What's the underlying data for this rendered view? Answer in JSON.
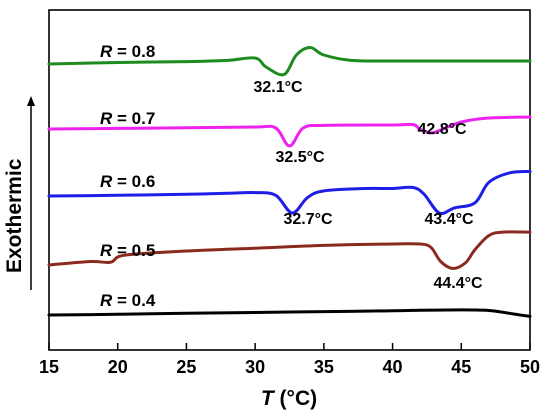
{
  "chart_data": {
    "type": "line",
    "title": "",
    "xlabel_italic": "T",
    "xlabel_rest": " (°C)",
    "ylabel": "Exothermic",
    "xlim": [
      15,
      50
    ],
    "xticks": [
      "15",
      "20",
      "25",
      "30",
      "35",
      "40",
      "45",
      "50"
    ],
    "grid": false,
    "legend": "none",
    "series": [
      {
        "name": "R = 0.4",
        "label_var": "R",
        "label_val": " = 0.4",
        "color": "#000000",
        "peaks": [],
        "points": [
          [
            15,
            0
          ],
          [
            20,
            0.025
          ],
          [
            25,
            0.06
          ],
          [
            30,
            0.09
          ],
          [
            35,
            0.12
          ],
          [
            40,
            0.15
          ],
          [
            42,
            0.17
          ],
          [
            44,
            0.18
          ],
          [
            46,
            0.18
          ],
          [
            47,
            0.16
          ],
          [
            48,
            0.1
          ],
          [
            49,
            0.02
          ],
          [
            50,
            -0.05
          ]
        ]
      },
      {
        "name": "R = 0.5",
        "label_var": "R",
        "label_val": " = 0.5",
        "color": "#8B2A1F",
        "peaks": [
          "44.4°C"
        ],
        "points": [
          [
            15,
            0
          ],
          [
            18,
            0.05
          ],
          [
            19.5,
            0.04
          ],
          [
            20.5,
            0.14
          ],
          [
            25,
            0.2
          ],
          [
            30,
            0.24
          ],
          [
            35,
            0.28
          ],
          [
            40,
            0.3
          ],
          [
            42,
            0.3
          ],
          [
            42.8,
            0.25
          ],
          [
            43.5,
            0.05
          ],
          [
            44.4,
            -0.05
          ],
          [
            45.3,
            0.03
          ],
          [
            46,
            0.22
          ],
          [
            47,
            0.42
          ],
          [
            48,
            0.47
          ],
          [
            50,
            0.47
          ]
        ]
      },
      {
        "name": "R = 0.6",
        "label_var": "R",
        "label_val": " = 0.6",
        "color": "#1E1EE6",
        "peaks": [
          "32.7°C",
          "43.4°C"
        ],
        "points": [
          [
            15,
            0
          ],
          [
            20,
            0.02
          ],
          [
            25,
            0.05
          ],
          [
            28,
            0.08
          ],
          [
            30,
            0.1
          ],
          [
            31.5,
            0.02
          ],
          [
            32.7,
            -0.5
          ],
          [
            33.8,
            -0.05
          ],
          [
            35,
            0.15
          ],
          [
            38,
            0.22
          ],
          [
            40,
            0.22
          ],
          [
            41.5,
            0.25
          ],
          [
            42.3,
            0.05
          ],
          [
            43.4,
            -0.5
          ],
          [
            44.5,
            -0.35
          ],
          [
            46,
            -0.2
          ],
          [
            47,
            0.4
          ],
          [
            48.5,
            0.68
          ],
          [
            50,
            0.72
          ]
        ]
      },
      {
        "name": "R = 0.7",
        "label_var": "R",
        "label_val": " = 0.7",
        "color": "#EE22EE",
        "peaks": [
          "32.5°C",
          "42.8°C"
        ],
        "points": [
          [
            15,
            0
          ],
          [
            20,
            0.03
          ],
          [
            25,
            0.06
          ],
          [
            30,
            0.1
          ],
          [
            31.5,
            0.05
          ],
          [
            32.5,
            -0.85
          ],
          [
            33.5,
            0.05
          ],
          [
            35,
            0.18
          ],
          [
            40,
            0.2
          ],
          [
            41.5,
            0.22
          ],
          [
            42,
            -0.02
          ],
          [
            42.8,
            -0.2
          ],
          [
            43.5,
            -0.05
          ],
          [
            45,
            0.35
          ],
          [
            47,
            0.55
          ],
          [
            50,
            0.6
          ]
        ]
      },
      {
        "name": "R = 0.8",
        "label_var": "R",
        "label_val": " = 0.8",
        "color": "#1E8B1E",
        "peaks": [
          "32.1°C"
        ],
        "points": [
          [
            15,
            0
          ],
          [
            20,
            0.05
          ],
          [
            25,
            0.08
          ],
          [
            28,
            0.12
          ],
          [
            30,
            0.2
          ],
          [
            30.8,
            -0.1
          ],
          [
            32.1,
            -0.35
          ],
          [
            33,
            0.3
          ],
          [
            34,
            0.55
          ],
          [
            35,
            0.3
          ],
          [
            37,
            0.12
          ],
          [
            40,
            0.1
          ],
          [
            45,
            0.1
          ],
          [
            50,
            0.1
          ]
        ]
      }
    ]
  }
}
